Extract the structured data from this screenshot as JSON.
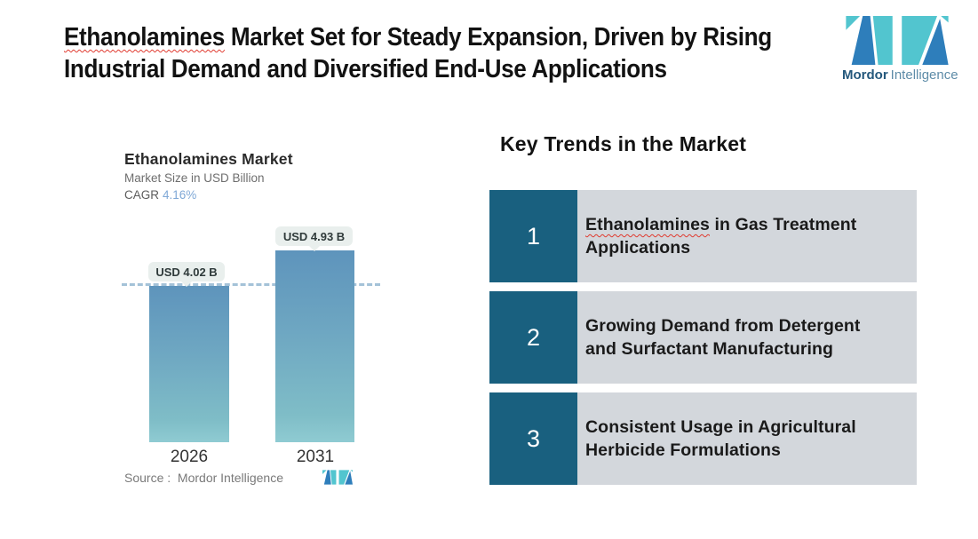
{
  "colors": {
    "page_bg": "#FFFFFF",
    "brand_teal": "#52C5CF",
    "brand_blue": "#2E7EBB",
    "logo_text_dark": "#24587C",
    "logo_text_light": "#5E8CA8",
    "accent_red": "#E0392E",
    "number_box": "#19607F",
    "trend_bg": "#D3D7DC",
    "bar_top": "#5E94BC",
    "bar_bottom": "#7FBDC7",
    "dash_color": "#A4C2D8",
    "pill_bg": "#E9EFED",
    "cagr_blue": "#7FA8D6"
  },
  "header": {
    "title_highlight": "Ethanolamines",
    "title_rest": " Market Set for Steady Expansion, Driven by Rising Industrial Demand and Diversified End-Use Applications",
    "logo": {
      "brand_bold": "Mordor",
      "brand_light": "Intelligence"
    }
  },
  "chart_data": {
    "type": "bar",
    "title": "Ethanolamines Market",
    "subtitle": "Market Size in USD Billion",
    "cagr_label": "CAGR",
    "cagr_value": "4.16%",
    "categories": [
      "2026",
      "2031"
    ],
    "values": [
      4.02,
      4.93
    ],
    "value_labels": [
      "USD 4.02 B",
      "USD 4.93 B"
    ],
    "ylabel": "Market Size in USD Billion",
    "reference_line_value": 4.02,
    "grid": false,
    "legend": false,
    "source": "Source :  Mordor Intelligence"
  },
  "key_trends": {
    "heading": "Key Trends in the Market",
    "items": [
      {
        "number": "1",
        "highlight": "Ethanolamines",
        "text": " in Gas Treatment Applications"
      },
      {
        "number": "2",
        "highlight": "",
        "text": "Growing Demand from Detergent and Surfactant Manufacturing"
      },
      {
        "number": "3",
        "highlight": "",
        "text": "Consistent Usage in Agricultural Herbicide Formulations"
      }
    ]
  }
}
